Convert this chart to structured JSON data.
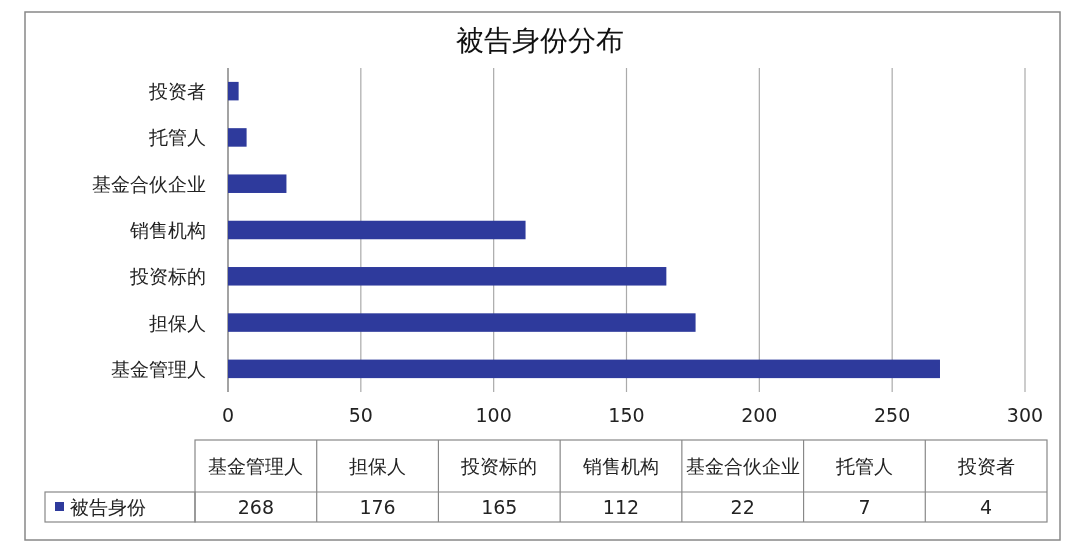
{
  "chart_data": [
    {
      "type": "bar",
      "title": "被告身份分布",
      "orientation": "horizontal",
      "categories": [
        "投资者",
        "托管人",
        "基金合伙企业",
        "销售机构",
        "投资标的",
        "担保人",
        "基金管理人"
      ],
      "series": [
        {
          "color": "#2e3a9c",
          "values": [
            4,
            7,
            22,
            112,
            165,
            176,
            268
          ]
        }
      ],
      "xlim": [
        0,
        300
      ],
      "xticks": [
        0,
        50,
        100,
        150,
        200,
        250,
        300
      ],
      "grid": "x"
    },
    {
      "type": "other",
      "categories": [
        "基金管理人",
        "担保人",
        "投资标的",
        "销售机构",
        "基金合伙企业",
        "托管人",
        "投资者"
      ],
      "series": [
        {
          "name": "被告身份",
          "color": "#2e3a9c",
          "values": [
            268,
            176,
            165,
            112,
            22,
            7,
            4
          ]
        }
      ],
      "legend": "left",
      "data_labels": true
    }
  ]
}
